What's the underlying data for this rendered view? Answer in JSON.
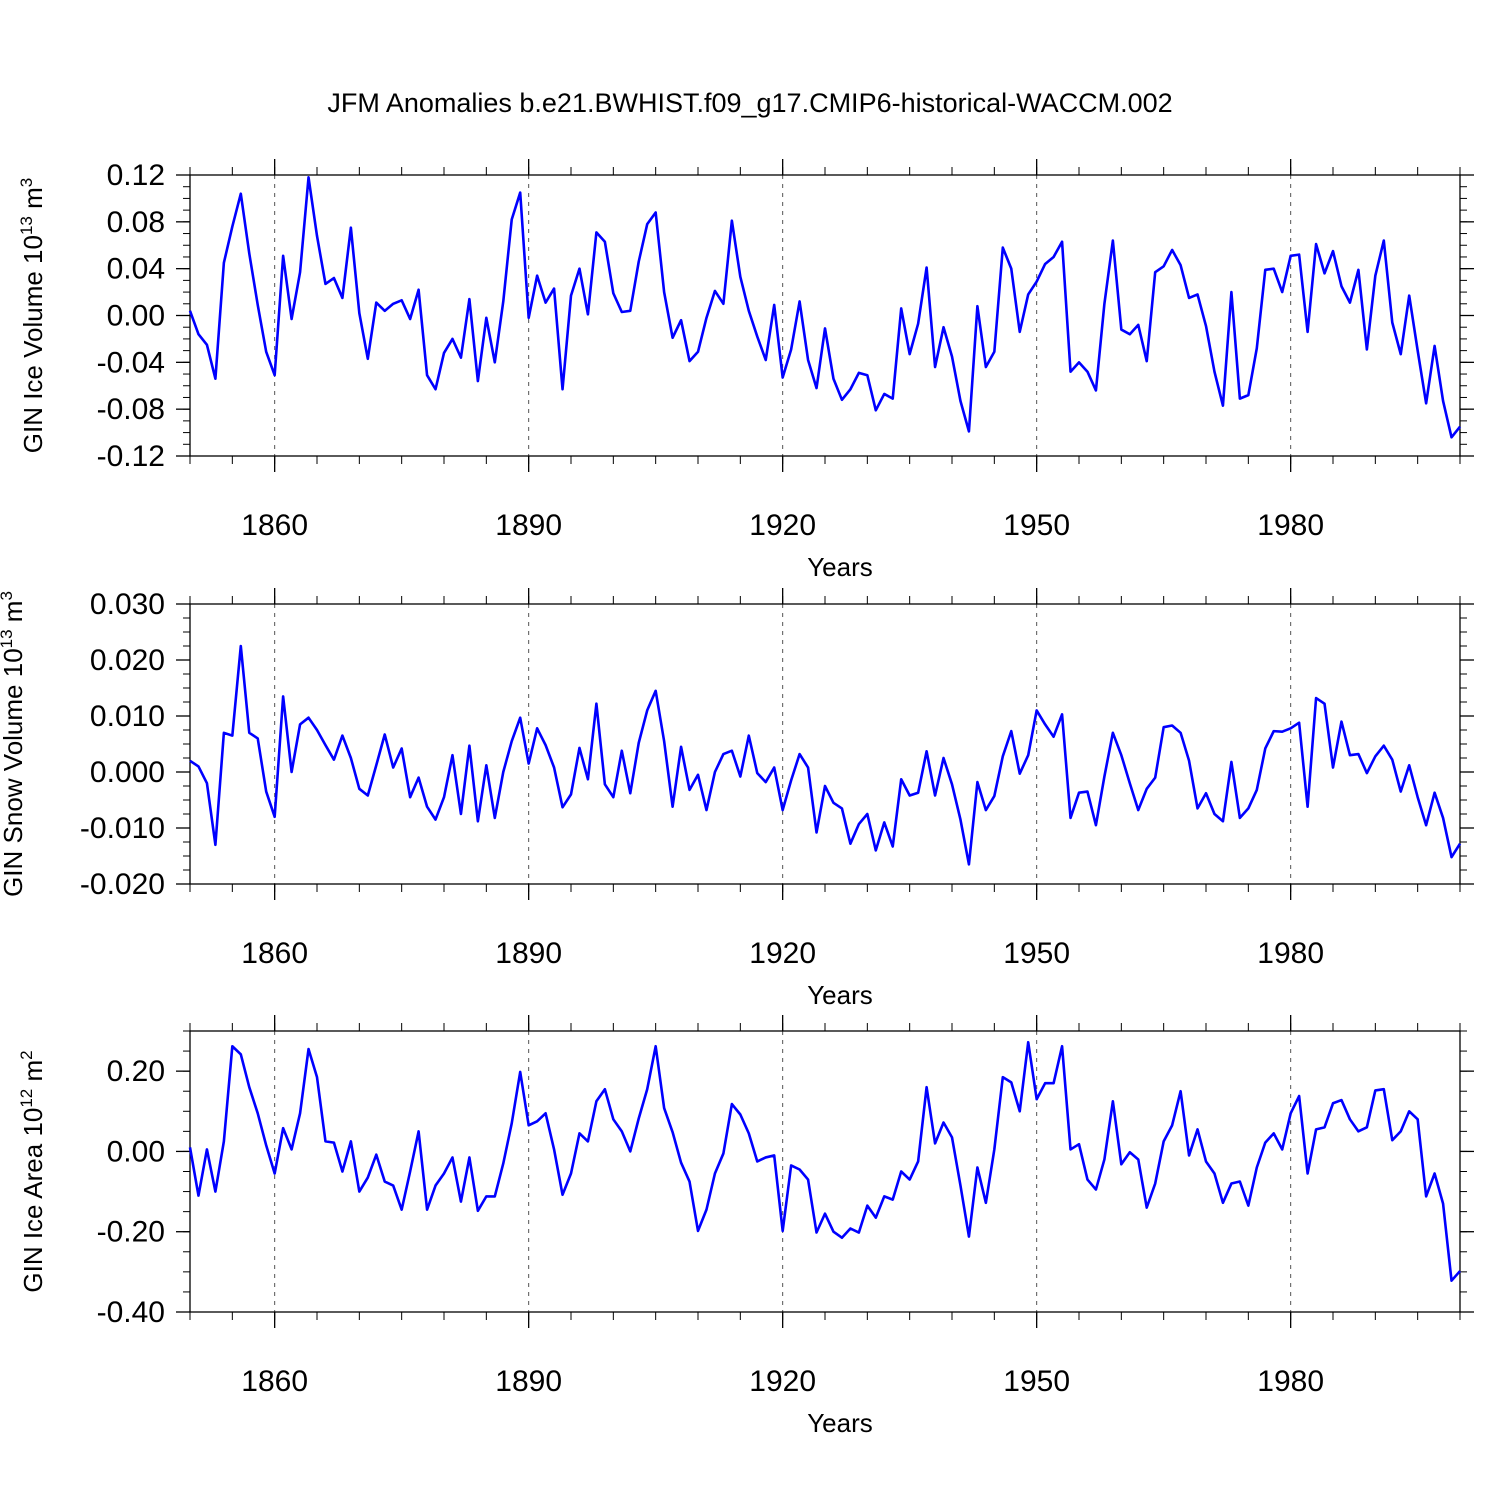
{
  "title": "JFM Anomalies b.e21.BWHIST.f09_g17.CMIP6-historical-WACCM.002",
  "colors": {
    "line": "#0000ff",
    "axis": "#000000",
    "grid": "#555555"
  },
  "chart_data": [
    {
      "type": "line",
      "name": "ice-volume",
      "title": "JFM Anomalies b.e21.BWHIST.f09_g17.CMIP6-historical-WACCM.002",
      "ylabel_main": "GIN Ice Volume 10",
      "ylabel_sup": "13",
      "ylabel_unit": " m",
      "ylabel_unit_sup": "3",
      "xlabel": "Years",
      "xlim": [
        1850,
        2000
      ],
      "ylim": [
        -0.12,
        0.12
      ],
      "yticks": [
        -0.12,
        -0.08,
        -0.04,
        0.0,
        0.04,
        0.08,
        0.12
      ],
      "ytick_labels": [
        "-0.12",
        "-0.08",
        "-0.04",
        "0.00",
        "0.04",
        "0.08",
        "0.12"
      ],
      "xticks": [
        1860,
        1890,
        1920,
        1950,
        1980
      ],
      "xtick_labels": [
        "1860",
        "1890",
        "1920",
        "1950",
        "1980"
      ],
      "x_start": 1850,
      "values": [
        0.004,
        -0.016,
        -0.025,
        -0.054,
        0.045,
        0.076,
        0.104,
        0.053,
        0.009,
        -0.031,
        -0.051,
        0.051,
        -0.003,
        0.037,
        0.118,
        0.068,
        0.027,
        0.032,
        0.015,
        0.075,
        0.002,
        -0.037,
        0.011,
        0.004,
        0.01,
        0.013,
        -0.003,
        0.022,
        -0.051,
        -0.063,
        -0.032,
        -0.02,
        -0.036,
        0.014,
        -0.056,
        -0.002,
        -0.04,
        0.012,
        0.082,
        0.105,
        -0.002,
        0.034,
        0.011,
        0.023,
        -0.063,
        0.017,
        0.04,
        0.001,
        0.071,
        0.063,
        0.019,
        0.003,
        0.004,
        0.046,
        0.078,
        0.088,
        0.02,
        -0.019,
        -0.004,
        -0.039,
        -0.031,
        -0.002,
        0.021,
        0.01,
        0.081,
        0.033,
        0.004,
        -0.018,
        -0.038,
        0.009,
        -0.053,
        -0.029,
        0.012,
        -0.038,
        -0.062,
        -0.011,
        -0.054,
        -0.072,
        -0.063,
        -0.049,
        -0.051,
        -0.081,
        -0.067,
        -0.071,
        0.006,
        -0.033,
        -0.007,
        0.041,
        -0.044,
        -0.01,
        -0.035,
        -0.073,
        -0.099,
        0.008,
        -0.044,
        -0.031,
        0.058,
        0.04,
        -0.014,
        0.018,
        0.029,
        0.044,
        0.05,
        0.063,
        -0.048,
        -0.04,
        -0.048,
        -0.064,
        0.01,
        0.064,
        -0.012,
        -0.016,
        -0.008,
        -0.039,
        0.037,
        0.042,
        0.056,
        0.043,
        0.015,
        0.018,
        -0.009,
        -0.048,
        -0.077,
        0.02,
        -0.071,
        -0.068,
        -0.028,
        0.039,
        0.04,
        0.02,
        0.051,
        0.052,
        -0.014,
        0.061,
        0.036,
        0.055,
        0.025,
        0.011,
        0.039,
        -0.029,
        0.034,
        0.064,
        -0.006,
        -0.033,
        0.017,
        -0.03,
        -0.075,
        -0.026,
        -0.073,
        -0.104,
        -0.095
      ]
    },
    {
      "type": "line",
      "name": "snow-volume",
      "ylabel_main": "GIN Snow Volume 10",
      "ylabel_sup": "13",
      "ylabel_unit": " m",
      "ylabel_unit_sup": "3",
      "xlabel": "Years",
      "xlim": [
        1850,
        2000
      ],
      "ylim": [
        -0.02,
        0.03
      ],
      "yticks": [
        -0.02,
        -0.01,
        0.0,
        0.01,
        0.02,
        0.03
      ],
      "ytick_labels": [
        "-0.020",
        "-0.010",
        "0.000",
        "0.010",
        "0.020",
        "0.030"
      ],
      "xticks": [
        1860,
        1890,
        1920,
        1950,
        1980
      ],
      "xtick_labels": [
        "1860",
        "1890",
        "1920",
        "1950",
        "1980"
      ],
      "x_start": 1850,
      "values": [
        0.002,
        0.001,
        -0.002,
        -0.013,
        0.007,
        0.0065,
        0.0225,
        0.007,
        0.006,
        -0.0035,
        -0.008,
        0.0135,
        0.0,
        0.0085,
        0.0097,
        0.0075,
        0.0048,
        0.0022,
        0.0065,
        0.0025,
        -0.003,
        -0.0042,
        0.0012,
        0.0067,
        0.0008,
        0.0042,
        -0.0045,
        -0.001,
        -0.0062,
        -0.0085,
        -0.0045,
        0.003,
        -0.0075,
        0.0047,
        -0.0088,
        0.0012,
        -0.0082,
        0.0,
        0.0055,
        0.0097,
        0.0015,
        0.0078,
        0.0048,
        0.0008,
        -0.0063,
        -0.004,
        0.0043,
        -0.0013,
        0.0122,
        -0.0022,
        -0.0045,
        0.0038,
        -0.0038,
        0.0052,
        0.011,
        0.0145,
        0.0055,
        -0.0062,
        0.0045,
        -0.0032,
        -0.0005,
        -0.0068,
        0.0,
        0.0032,
        0.0038,
        -0.0008,
        0.0065,
        -0.0002,
        -0.0018,
        0.0008,
        -0.0068,
        -0.0015,
        0.0032,
        0.0008,
        -0.0108,
        -0.0025,
        -0.0055,
        -0.0065,
        -0.0128,
        -0.0093,
        -0.0075,
        -0.014,
        -0.009,
        -0.0133,
        -0.0013,
        -0.0042,
        -0.0037,
        0.0037,
        -0.0042,
        0.0025,
        -0.0022,
        -0.0085,
        -0.0165,
        -0.0018,
        -0.0068,
        -0.0043,
        0.0028,
        0.0073,
        -0.0003,
        0.003,
        0.011,
        0.0085,
        0.0063,
        0.0103,
        -0.0082,
        -0.0037,
        -0.0035,
        -0.0095,
        -0.0008,
        0.007,
        0.003,
        -0.002,
        -0.0068,
        -0.003,
        -0.001,
        0.008,
        0.0083,
        0.007,
        0.002,
        -0.0065,
        -0.0038,
        -0.0075,
        -0.0088,
        0.0018,
        -0.0082,
        -0.0065,
        -0.0032,
        0.0042,
        0.0073,
        0.0072,
        0.0078,
        0.0088,
        -0.0062,
        0.0132,
        0.0122,
        0.0008,
        0.009,
        0.003,
        0.0032,
        -0.0002,
        0.0028,
        0.0047,
        0.0022,
        -0.0035,
        0.0012,
        -0.0045,
        -0.0095,
        -0.0037,
        -0.0082,
        -0.0152,
        -0.0128
      ]
    },
    {
      "type": "line",
      "name": "ice-area",
      "ylabel_main": "GIN Ice Area 10",
      "ylabel_sup": "12",
      "ylabel_unit": " m",
      "ylabel_unit_sup": "2",
      "xlabel": "Years",
      "xlim": [
        1850,
        2000
      ],
      "ylim": [
        -0.4,
        0.3
      ],
      "yticks": [
        -0.4,
        -0.2,
        0.0,
        0.2
      ],
      "ytick_labels": [
        "-0.40",
        "-0.20",
        "0.00",
        "0.20"
      ],
      "xticks": [
        1860,
        1890,
        1920,
        1950,
        1980
      ],
      "xtick_labels": [
        "1860",
        "1890",
        "1920",
        "1950",
        "1980"
      ],
      "x_start": 1850,
      "values": [
        0.01,
        -0.11,
        0.005,
        -0.1,
        0.025,
        0.262,
        0.242,
        0.16,
        0.095,
        0.015,
        -0.055,
        0.058,
        0.005,
        0.095,
        0.255,
        0.185,
        0.025,
        0.022,
        -0.05,
        0.025,
        -0.1,
        -0.065,
        -0.008,
        -0.075,
        -0.085,
        -0.145,
        -0.05,
        0.05,
        -0.145,
        -0.085,
        -0.055,
        -0.015,
        -0.125,
        -0.015,
        -0.148,
        -0.112,
        -0.112,
        -0.03,
        0.07,
        0.198,
        0.065,
        0.075,
        0.095,
        0.005,
        -0.108,
        -0.055,
        0.045,
        0.025,
        0.125,
        0.155,
        0.08,
        0.05,
        0.0,
        0.082,
        0.155,
        0.262,
        0.108,
        0.048,
        -0.028,
        -0.075,
        -0.198,
        -0.145,
        -0.055,
        -0.005,
        0.118,
        0.092,
        0.045,
        -0.025,
        -0.015,
        -0.01,
        -0.198,
        -0.035,
        -0.045,
        -0.07,
        -0.202,
        -0.155,
        -0.2,
        -0.215,
        -0.192,
        -0.202,
        -0.135,
        -0.165,
        -0.112,
        -0.12,
        -0.05,
        -0.07,
        -0.025,
        0.16,
        0.02,
        0.072,
        0.035,
        -0.085,
        -0.212,
        -0.04,
        -0.128,
        0.005,
        0.185,
        0.172,
        0.1,
        0.272,
        0.13,
        0.17,
        0.17,
        0.262,
        0.005,
        0.018,
        -0.07,
        -0.095,
        -0.02,
        0.125,
        -0.032,
        -0.002,
        -0.02,
        -0.14,
        -0.08,
        0.025,
        0.065,
        0.15,
        -0.01,
        0.055,
        -0.025,
        -0.055,
        -0.128,
        -0.08,
        -0.075,
        -0.135,
        -0.04,
        0.022,
        0.045,
        0.005,
        0.095,
        0.138,
        -0.055,
        0.055,
        0.06,
        0.12,
        0.128,
        0.08,
        0.05,
        0.06,
        0.152,
        0.155,
        0.028,
        0.05,
        0.1,
        0.08,
        -0.112,
        -0.055,
        -0.13,
        -0.322,
        -0.298
      ]
    }
  ]
}
